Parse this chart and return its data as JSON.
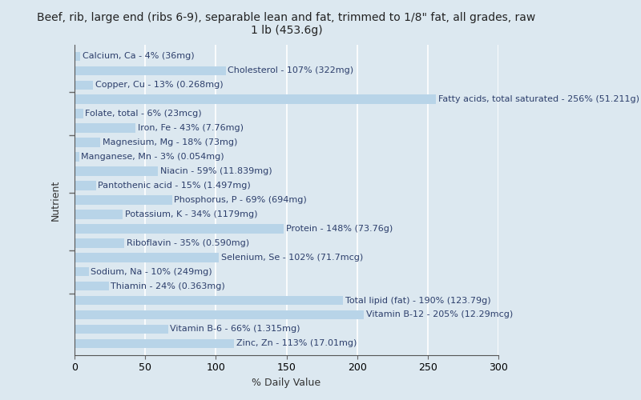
{
  "title": "Beef, rib, large end (ribs 6-9), separable lean and fat, trimmed to 1/8\" fat, all grades, raw\n1 lb (453.6g)",
  "xlabel": "% Daily Value",
  "ylabel": "Nutrient",
  "background_color": "#dce8f0",
  "plot_background": "#dce8f0",
  "bar_color": "#b8d4e8",
  "xlim": [
    0,
    300
  ],
  "xticks": [
    0,
    50,
    100,
    150,
    200,
    250,
    300
  ],
  "nutrients": [
    "Calcium, Ca - 4% (36mg)",
    "Cholesterol - 107% (322mg)",
    "Copper, Cu - 13% (0.268mg)",
    "Fatty acids, total saturated - 256% (51.211g)",
    "Folate, total - 6% (23mcg)",
    "Iron, Fe - 43% (7.76mg)",
    "Magnesium, Mg - 18% (73mg)",
    "Manganese, Mn - 3% (0.054mg)",
    "Niacin - 59% (11.839mg)",
    "Pantothenic acid - 15% (1.497mg)",
    "Phosphorus, P - 69% (694mg)",
    "Potassium, K - 34% (1179mg)",
    "Protein - 148% (73.76g)",
    "Riboflavin - 35% (0.590mg)",
    "Selenium, Se - 102% (71.7mcg)",
    "Sodium, Na - 10% (249mg)",
    "Thiamin - 24% (0.363mg)",
    "Total lipid (fat) - 190% (123.79g)",
    "Vitamin B-12 - 205% (12.29mcg)",
    "Vitamin B-6 - 66% (1.315mg)",
    "Zinc, Zn - 113% (17.01mg)"
  ],
  "values": [
    4,
    107,
    13,
    256,
    6,
    43,
    18,
    3,
    59,
    15,
    69,
    34,
    148,
    35,
    102,
    10,
    24,
    190,
    205,
    66,
    113
  ],
  "grid_color": "#ffffff",
  "text_color": "#2c3e6b",
  "title_fontsize": 10,
  "label_fontsize": 8,
  "tick_fontsize": 9,
  "axis_label_fontsize": 9,
  "bar_height": 0.65,
  "ytick_positions": [
    3,
    6,
    10,
    14,
    17
  ]
}
